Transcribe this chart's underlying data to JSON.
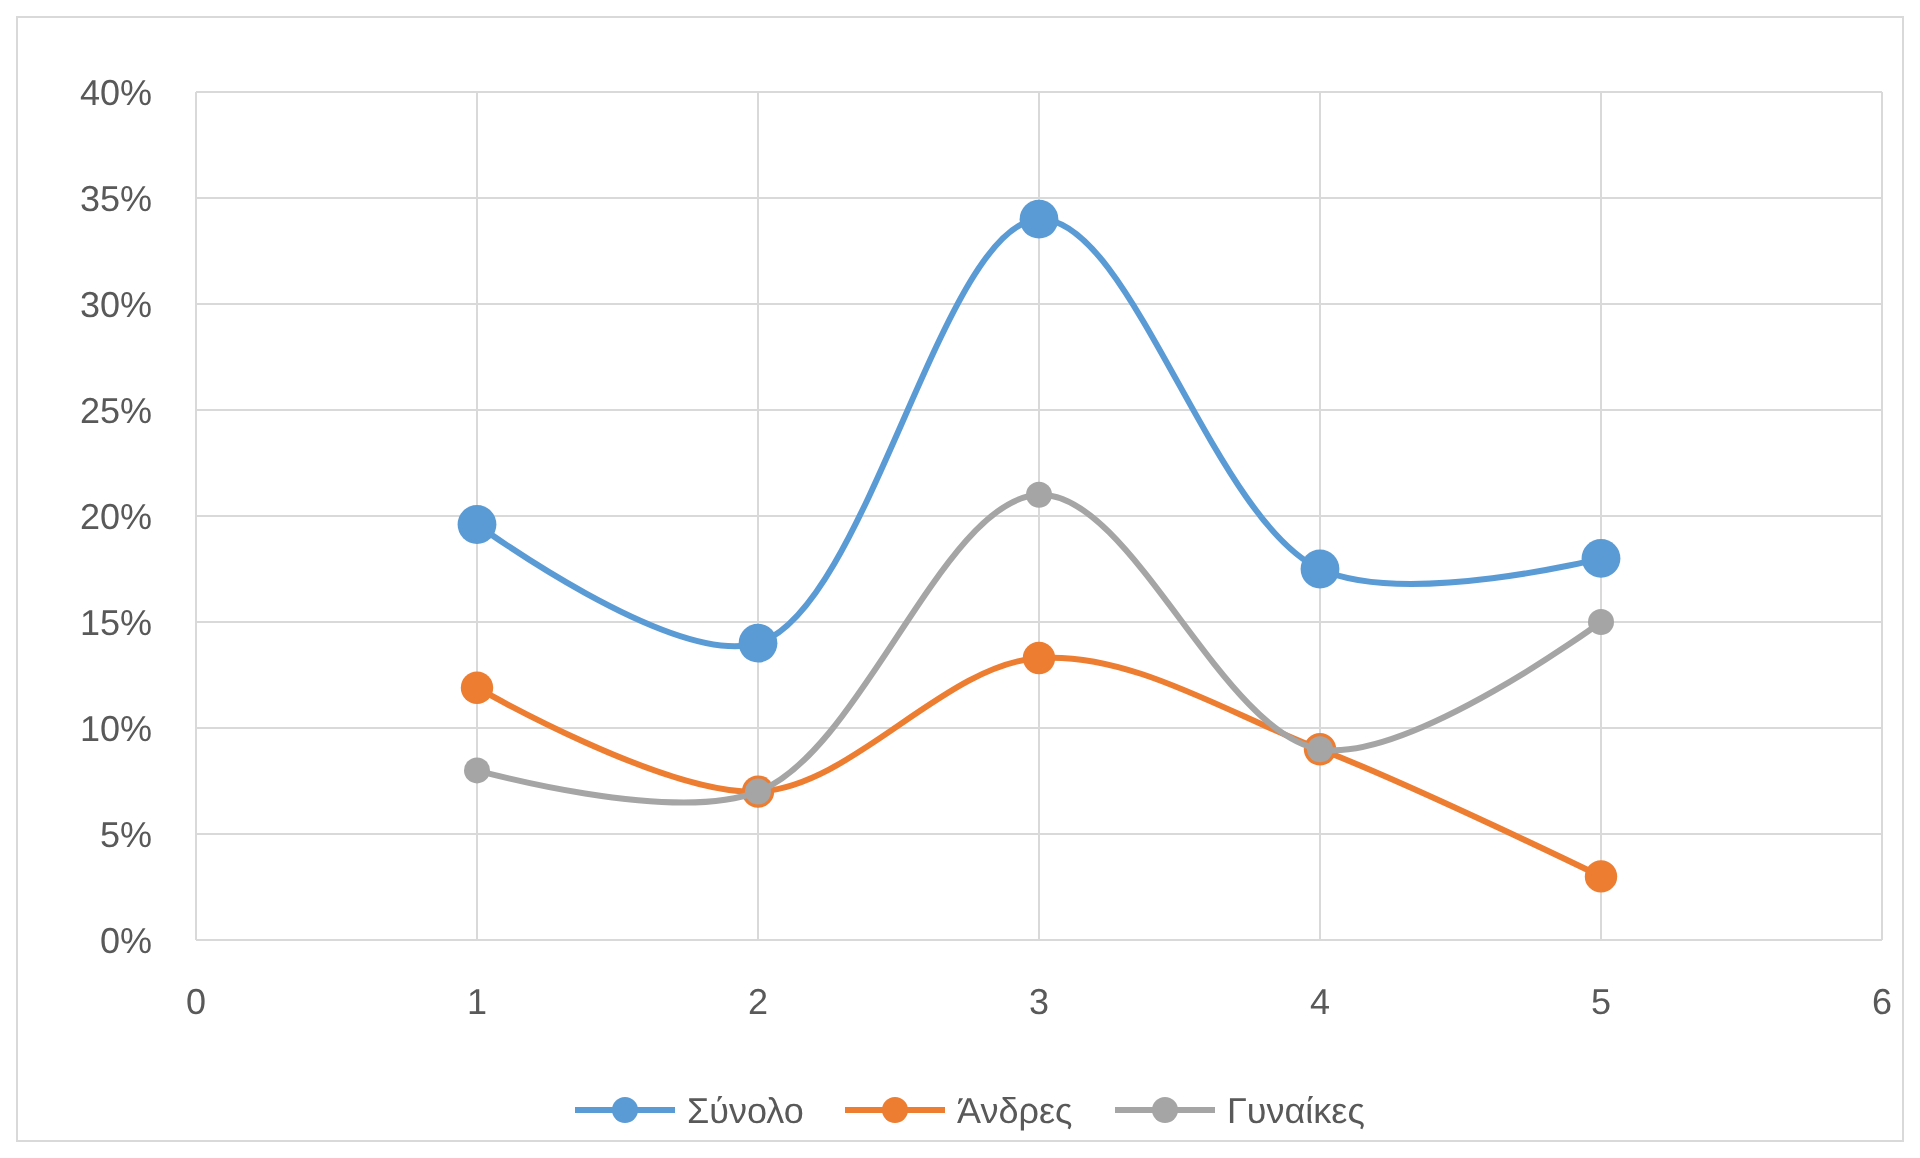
{
  "chart_data": {
    "type": "line",
    "x": [
      1,
      2,
      3,
      4,
      5
    ],
    "series": [
      {
        "name": "Σύνολο",
        "color": "#5b9bd5",
        "values": [
          19.6,
          14,
          34,
          17.5,
          18
        ]
      },
      {
        "name": "Άνδρες",
        "color": "#ed7d31",
        "values": [
          11.9,
          7,
          13.3,
          9,
          3
        ]
      },
      {
        "name": "Γυναίκες",
        "color": "#a5a5a5",
        "values": [
          8,
          7,
          21,
          9,
          15
        ]
      }
    ],
    "xlim": [
      0,
      6
    ],
    "xticks": [
      0,
      1,
      2,
      3,
      4,
      5,
      6
    ],
    "ylim": [
      0,
      40
    ],
    "yticks": [
      {
        "value": 0,
        "label": "0%"
      },
      {
        "value": 5,
        "label": "5%"
      },
      {
        "value": 10,
        "label": "10%"
      },
      {
        "value": 15,
        "label": "15%"
      },
      {
        "value": 20,
        "label": "20%"
      },
      {
        "value": 25,
        "label": "25%"
      },
      {
        "value": 30,
        "label": "30%"
      },
      {
        "value": 35,
        "label": "35%"
      },
      {
        "value": 40,
        "label": "40%"
      }
    ],
    "grid": true,
    "legend": "bottom",
    "marker": "circle",
    "line_style": "solid"
  }
}
